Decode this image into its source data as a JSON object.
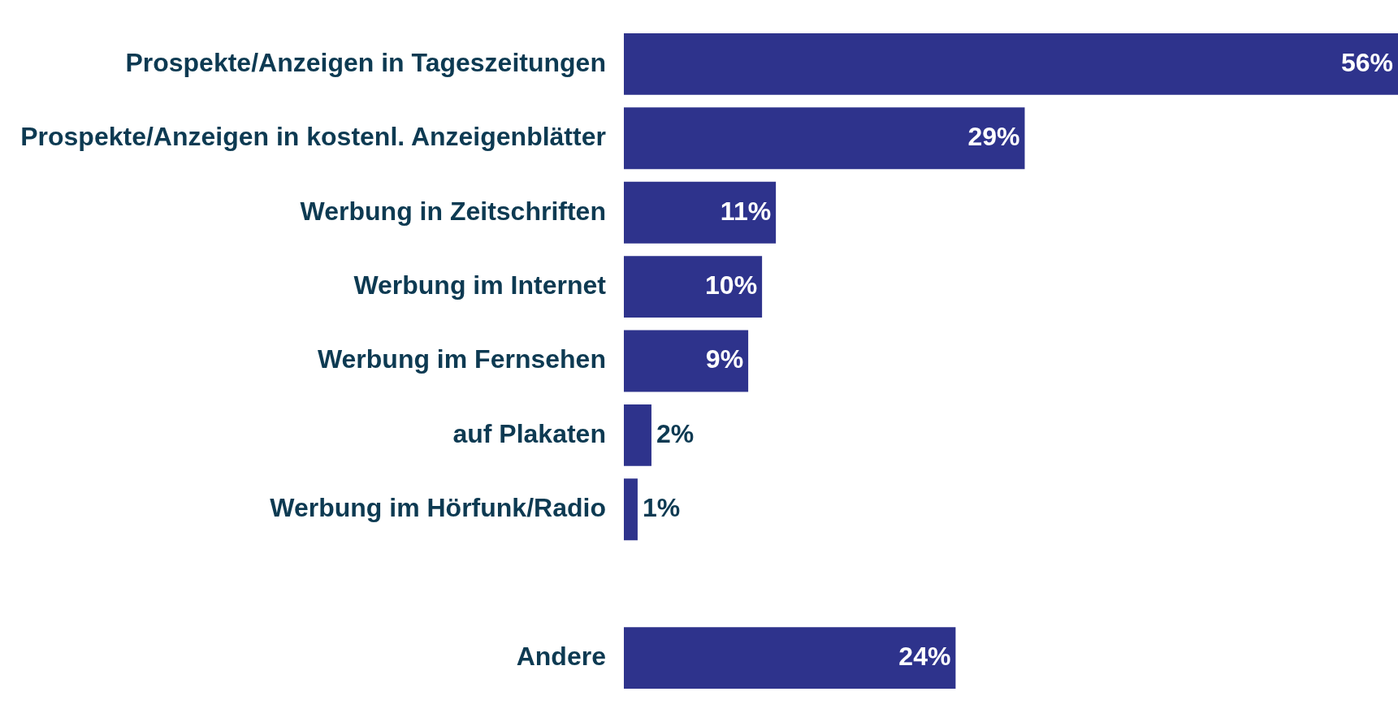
{
  "chart_data": {
    "type": "bar",
    "orientation": "horizontal",
    "categories": [
      "Prospekte/Anzeigen in Tageszeitungen",
      "Prospekte/Anzeigen in kostenl. Anzeigenblätter",
      "Werbung in Zeitschriften",
      "Werbung im Internet",
      "Werbung im Fernsehen",
      "auf Plakaten",
      "Werbung im Hörfunk/Radio",
      null,
      "Andere"
    ],
    "values": [
      56,
      29,
      11,
      10,
      9,
      2,
      1,
      null,
      24
    ],
    "value_labels": [
      "56%",
      "29%",
      "11%",
      "10%",
      "9%",
      "2%",
      "1%",
      null,
      "24%"
    ],
    "color": "#2e338c"
  }
}
